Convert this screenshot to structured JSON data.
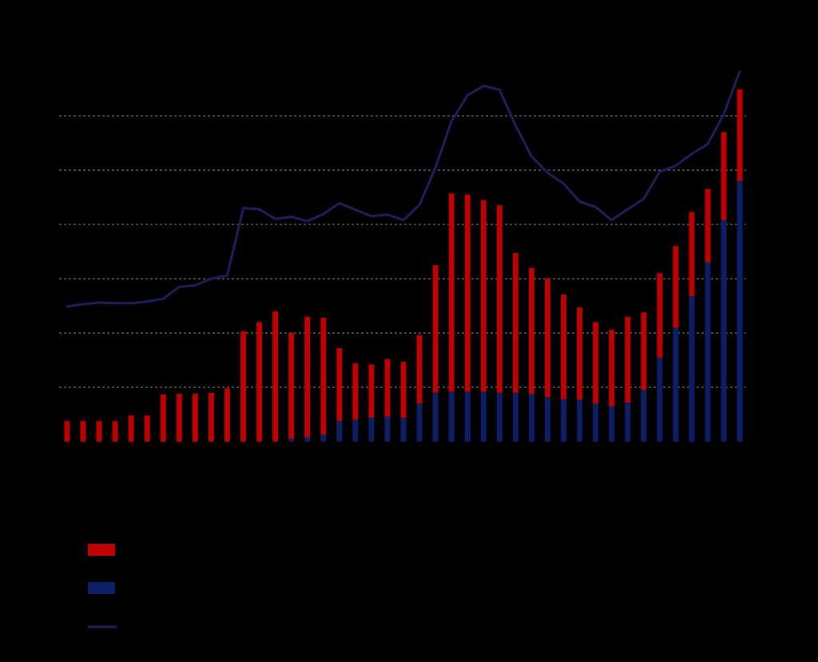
{
  "chart_data": {
    "type": "bar",
    "stacked": true,
    "background": "#000000",
    "grid": true,
    "grid_style": "dashed horizontal",
    "legend_placement": "bottom-left",
    "ylim": [
      0,
      6.5
    ],
    "y_gridlines": [
      1,
      2,
      3,
      4,
      5,
      6
    ],
    "categories": [
      "",
      "",
      "",
      "",
      "",
      "",
      "",
      "",
      "",
      "",
      "",
      "",
      "",
      "",
      "",
      "",
      "",
      "",
      "",
      "",
      "",
      "",
      "",
      "",
      "",
      "",
      "",
      "",
      "",
      "",
      "",
      "",
      "",
      "",
      "",
      "",
      "",
      "",
      "",
      "",
      "",
      "",
      ""
    ],
    "series": [
      {
        "kind": "bar",
        "color": "#0b1f66",
        "values": [
          0,
          0,
          0,
          0,
          0,
          0,
          0,
          0,
          0,
          0,
          0,
          0,
          0,
          0,
          0.05,
          0.08,
          0.13,
          0.38,
          0.4,
          0.44,
          0.46,
          0.44,
          0.7,
          0.9,
          0.92,
          0.92,
          0.92,
          0.9,
          0.9,
          0.87,
          0.82,
          0.78,
          0.77,
          0.7,
          0.65,
          0.72,
          0.95,
          1.55,
          2.1,
          2.68,
          3.3,
          4.08,
          4.8
        ]
      },
      {
        "kind": "bar",
        "color": "#c00000",
        "values": [
          0.38,
          0.38,
          0.38,
          0.38,
          0.48,
          0.48,
          0.87,
          0.88,
          0.88,
          0.9,
          0.98,
          2.03,
          2.2,
          2.4,
          1.95,
          2.22,
          2.15,
          1.34,
          1.04,
          0.98,
          1.06,
          1.03,
          1.26,
          2.35,
          3.65,
          3.63,
          3.53,
          3.45,
          2.57,
          2.33,
          2.18,
          1.93,
          1.7,
          1.5,
          1.41,
          1.58,
          1.43,
          1.55,
          1.5,
          1.55,
          1.35,
          1.62,
          1.69
        ]
      },
      {
        "kind": "line",
        "color": "#1f1f5c",
        "values": [
          2.49,
          2.53,
          2.56,
          2.55,
          2.55,
          2.58,
          2.63,
          2.85,
          2.88,
          3.0,
          3.06,
          4.3,
          4.28,
          4.1,
          4.14,
          4.06,
          4.19,
          4.39,
          4.27,
          4.15,
          4.18,
          4.08,
          4.36,
          5.05,
          5.9,
          6.38,
          6.55,
          6.48,
          5.82,
          5.25,
          4.95,
          4.75,
          4.42,
          4.32,
          4.08,
          4.28,
          4.47,
          4.97,
          5.08,
          5.3,
          5.48,
          6.03,
          6.82
        ]
      }
    ],
    "legend": [
      {
        "marker": "bar",
        "color": "#c00000",
        "label": ""
      },
      {
        "marker": "bar",
        "color": "#0b1f66",
        "label": ""
      },
      {
        "marker": "line",
        "color": "#1f1f5c",
        "label": ""
      }
    ]
  }
}
